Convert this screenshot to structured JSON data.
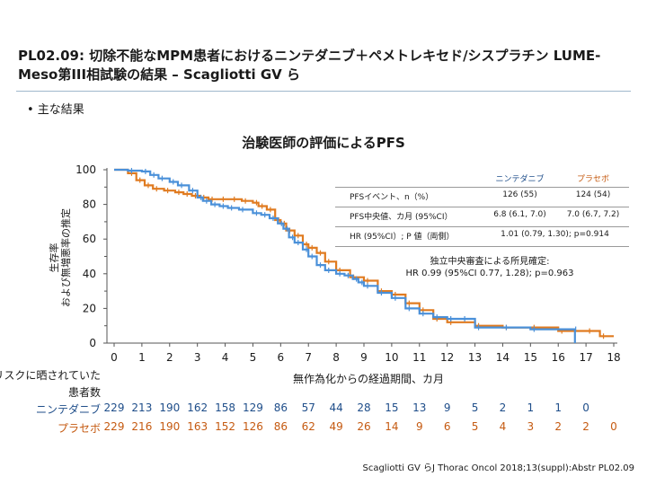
{
  "slide": {
    "title_line1": "PL02.09: 切除不能なMPM患者におけるニンテダニブ＋ペメトレキセド/シスプラチン LUME-",
    "title_line2": "Meso第III相試験の結果 – Scagliotti GV ら",
    "bullet": "•  主な結果",
    "citation": "Scagliotti GV らJ Thorac Oncol 2018;13(suppl):Abstr PL02.09"
  },
  "legend": {
    "col1": "ニンテダニブ",
    "col2": "プラセボ",
    "rows": [
      {
        "label": "PFSイベント、n（%）",
        "v1": "126 (55)",
        "v2": "124 (54)"
      },
      {
        "label": "PFS中央値、カ月 (95%CI）",
        "v1": "6.8 (6.1, 7.0)",
        "v2": "7.0 (6.7, 7.2)"
      },
      {
        "label": "HR (95%CI）; P 値（両側）",
        "span": "1.01 (0.79, 1.30); p=0.914"
      }
    ]
  },
  "independent": {
    "line1": "独立中央審査による所見確定:",
    "line2": "HR 0.99 (95%CI 0.77, 1.28); p=0.963"
  },
  "risk_table": {
    "header_line1": "リスクに晒されていた",
    "header_line2": "患者数",
    "rows": [
      {
        "name": "ニンテダニブ",
        "color": "#1f4e8a",
        "counts": [
          "229",
          "213",
          "190",
          "162",
          "158",
          "129",
          "86",
          "57",
          "44",
          "28",
          "15",
          "13",
          "9",
          "5",
          "2",
          "1",
          "1",
          "0",
          ""
        ]
      },
      {
        "name": "プラセボ",
        "color": "#c55a11",
        "counts": [
          "229",
          "216",
          "190",
          "163",
          "152",
          "126",
          "86",
          "62",
          "49",
          "26",
          "14",
          "9",
          "6",
          "5",
          "4",
          "3",
          "2",
          "2",
          "0"
        ]
      }
    ]
  },
  "chart_data": {
    "type": "line",
    "title": "治験医師の評価によるPFS",
    "xlabel": "無作為化からの経過期間、カ月",
    "ylabel_line1": "生存率",
    "ylabel_line2": "および無増悪率の推定",
    "xlim": [
      0,
      18
    ],
    "ylim": [
      0,
      100
    ],
    "x_ticks": [
      "0",
      "1",
      "2",
      "3",
      "4",
      "5",
      "6",
      "7",
      "8",
      "9",
      "10",
      "11",
      "12",
      "13",
      "14",
      "15",
      "16",
      "17",
      "18"
    ],
    "y_ticks": [
      "0",
      "20",
      "40",
      "60",
      "80",
      "100"
    ],
    "step": true,
    "series": [
      {
        "name": "ニンテダニブ",
        "color": "#4a90d9",
        "points": [
          [
            0,
            100
          ],
          [
            0.5,
            99.5
          ],
          [
            1,
            99
          ],
          [
            1.3,
            97
          ],
          [
            1.6,
            95
          ],
          [
            2,
            93
          ],
          [
            2.3,
            91
          ],
          [
            2.7,
            88
          ],
          [
            3,
            84
          ],
          [
            3.2,
            82
          ],
          [
            3.5,
            80
          ],
          [
            3.8,
            79
          ],
          [
            4.1,
            78
          ],
          [
            4.5,
            77
          ],
          [
            5,
            75
          ],
          [
            5.3,
            74
          ],
          [
            5.6,
            72
          ],
          [
            5.9,
            69
          ],
          [
            6.1,
            66
          ],
          [
            6.3,
            61
          ],
          [
            6.5,
            58
          ],
          [
            6.8,
            54
          ],
          [
            7,
            50
          ],
          [
            7.3,
            45
          ],
          [
            7.6,
            42
          ],
          [
            8,
            40
          ],
          [
            8.3,
            39
          ],
          [
            8.6,
            37
          ],
          [
            8.8,
            35
          ],
          [
            9,
            33
          ],
          [
            9.5,
            29
          ],
          [
            10,
            26
          ],
          [
            10.5,
            20
          ],
          [
            11,
            17
          ],
          [
            11.5,
            15
          ],
          [
            12,
            14
          ],
          [
            12.5,
            14
          ],
          [
            13,
            9
          ],
          [
            14,
            9
          ],
          [
            15,
            8
          ],
          [
            16.5,
            8
          ],
          [
            16.6,
            0
          ]
        ]
      },
      {
        "name": "プラセボ",
        "color": "#e07b20",
        "points": [
          [
            0,
            100
          ],
          [
            0.5,
            98
          ],
          [
            0.8,
            94
          ],
          [
            1.1,
            91
          ],
          [
            1.4,
            89
          ],
          [
            1.8,
            88
          ],
          [
            2.2,
            87
          ],
          [
            2.5,
            86
          ],
          [
            2.8,
            85
          ],
          [
            3.1,
            84
          ],
          [
            3.4,
            83
          ],
          [
            3.8,
            83
          ],
          [
            4.2,
            83
          ],
          [
            4.6,
            82
          ],
          [
            5,
            81
          ],
          [
            5.2,
            79
          ],
          [
            5.5,
            77
          ],
          [
            5.8,
            71
          ],
          [
            6,
            69
          ],
          [
            6.2,
            65
          ],
          [
            6.5,
            62
          ],
          [
            6.8,
            57
          ],
          [
            7,
            55
          ],
          [
            7.3,
            52
          ],
          [
            7.6,
            47
          ],
          [
            8,
            42
          ],
          [
            8.5,
            38
          ],
          [
            9,
            36
          ],
          [
            9.5,
            30
          ],
          [
            10,
            28
          ],
          [
            10.5,
            23
          ],
          [
            11,
            19
          ],
          [
            11.5,
            14
          ],
          [
            12,
            12
          ],
          [
            13,
            10
          ],
          [
            14,
            9
          ],
          [
            15,
            9
          ],
          [
            16,
            7
          ],
          [
            17,
            7
          ],
          [
            17.5,
            4
          ],
          [
            18,
            4
          ]
        ]
      }
    ]
  }
}
